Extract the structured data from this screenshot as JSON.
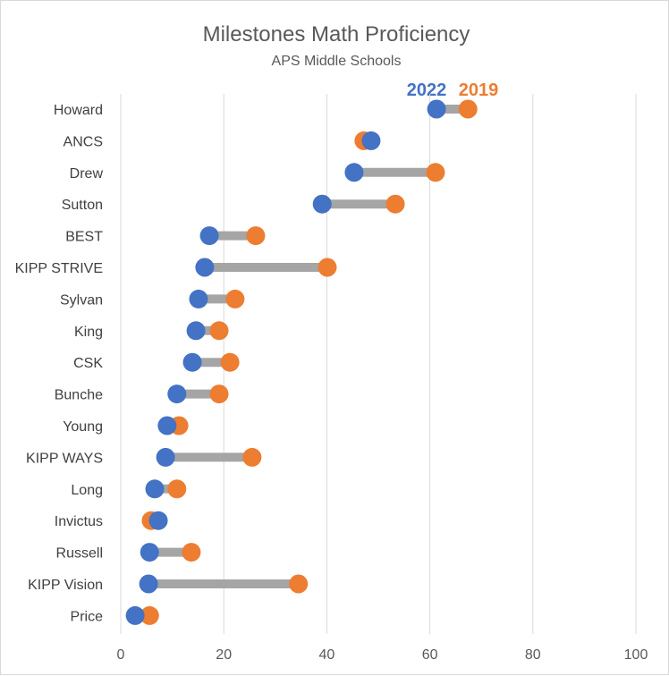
{
  "chart_data": {
    "type": "dumbbell",
    "title": "Milestones Math Proficiency",
    "subtitle": "APS Middle Schools",
    "xlabel": "",
    "ylabel": "",
    "xlim": [
      0,
      100
    ],
    "xticks": [
      0,
      20,
      40,
      60,
      80,
      100
    ],
    "grid": true,
    "legend_placement": "top-right",
    "categories": [
      "Howard",
      "ANCS",
      "Drew",
      "Sutton",
      "BEST",
      "KIPP STRIVE",
      "Sylvan",
      "King",
      "CSK",
      "Bunche",
      "Young",
      "KIPP WAYS",
      "Long",
      "Invictus",
      "Russell",
      "KIPP Vision",
      "Price"
    ],
    "series": [
      {
        "name": "2022",
        "color": "#4472C4",
        "values": [
          61.3,
          48.6,
          45.3,
          39.1,
          17.2,
          16.3,
          15.1,
          14.6,
          13.9,
          10.9,
          9.0,
          8.7,
          6.6,
          7.3,
          5.6,
          5.4,
          2.8
        ]
      },
      {
        "name": "2019",
        "color": "#ED7D31",
        "values": [
          67.4,
          47.2,
          61.1,
          53.3,
          26.2,
          40.1,
          22.2,
          19.1,
          21.2,
          19.1,
          11.3,
          25.5,
          10.9,
          5.9,
          13.7,
          34.5,
          5.6
        ]
      }
    ],
    "connector_color": "#A5A5A5"
  }
}
